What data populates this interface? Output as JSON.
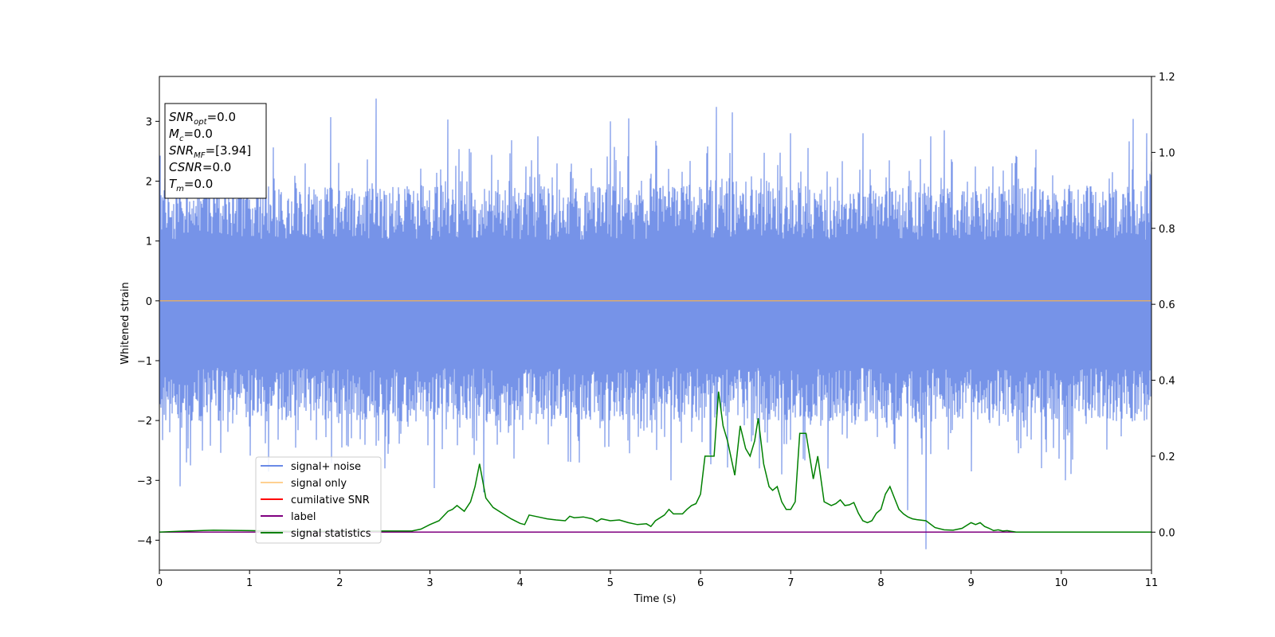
{
  "chart_data": {
    "type": "line",
    "xlabel": "Time (s)",
    "ylabel": "Whitened strain",
    "xlim": [
      0,
      11
    ],
    "ylim": [
      -4.5,
      3.75
    ],
    "ylim_right": [
      -0.1,
      1.2
    ],
    "x_ticks": [
      0,
      1,
      2,
      3,
      4,
      5,
      6,
      7,
      8,
      9,
      10,
      11
    ],
    "y_ticks": [
      -4,
      -3,
      -2,
      -1,
      0,
      1,
      2,
      3
    ],
    "y_tick_labels": [
      "−4",
      "−3",
      "−2",
      "−1",
      "0",
      "1",
      "2",
      "3"
    ],
    "y2_ticks": [
      0.0,
      0.2,
      0.4,
      0.6,
      0.8,
      1.0,
      1.2
    ],
    "y2_tick_labels": [
      "0.0",
      "0.2",
      "0.4",
      "0.6",
      "0.8",
      "1.0",
      "1.2"
    ],
    "grid": false,
    "legend_position": "lower-left",
    "annotation": {
      "lines": [
        {
          "base": "SNR",
          "sub": "opt",
          "rest": "=0.0"
        },
        {
          "base": "M",
          "sub": "c",
          "rest": "=0.0"
        },
        {
          "base": "SNR",
          "sub": "MF",
          "rest": "=[3.94]"
        },
        {
          "base": "CSNR",
          "sub": "",
          "rest": "=0.0"
        },
        {
          "base": "T",
          "sub": "m",
          "rest": "=0.0"
        }
      ]
    },
    "series": [
      {
        "name": "signal+ noise",
        "color": "#6a8ae6",
        "axis": "left",
        "kind": "noise",
        "envelope_typical": [
          -1.3,
          1.2
        ],
        "spikes": [
          {
            "x": 0.23,
            "y": -3.1
          },
          {
            "x": 0.3,
            "y": -2.7
          },
          {
            "x": 1.0,
            "y": -2.1
          },
          {
            "x": 1.9,
            "y": 3.07
          },
          {
            "x": 2.4,
            "y": 3.38
          },
          {
            "x": 2.5,
            "y": -2.8
          },
          {
            "x": 3.05,
            "y": -3.13
          },
          {
            "x": 3.2,
            "y": 3.03
          },
          {
            "x": 3.6,
            "y": -3.2
          },
          {
            "x": 4.2,
            "y": 2.75
          },
          {
            "x": 5.0,
            "y": 3.0
          },
          {
            "x": 5.2,
            "y": 3.05
          },
          {
            "x": 5.67,
            "y": -3.0
          },
          {
            "x": 6.18,
            "y": 3.24
          },
          {
            "x": 6.35,
            "y": 3.15
          },
          {
            "x": 6.65,
            "y": -2.8
          },
          {
            "x": 6.9,
            "y": -2.9
          },
          {
            "x": 7.0,
            "y": 2.8
          },
          {
            "x": 7.8,
            "y": 2.8
          },
          {
            "x": 8.3,
            "y": -3.5
          },
          {
            "x": 8.5,
            "y": -4.15
          },
          {
            "x": 8.55,
            "y": 2.75
          },
          {
            "x": 8.7,
            "y": 2.85
          },
          {
            "x": 9.0,
            "y": -2.85
          },
          {
            "x": 10.05,
            "y": -3.0
          },
          {
            "x": 10.8,
            "y": 3.04
          },
          {
            "x": 10.95,
            "y": 2.8
          }
        ]
      },
      {
        "name": "signal only",
        "color": "#ffb347",
        "axis": "left",
        "x": [
          0,
          11
        ],
        "y": [
          0,
          0
        ]
      },
      {
        "name": "cumilative SNR",
        "color": "#ff0000",
        "axis": "right",
        "x": [
          0,
          11
        ],
        "y": [
          0,
          0
        ]
      },
      {
        "name": "label",
        "color": "#800080",
        "axis": "right",
        "x": [
          0,
          11
        ],
        "y": [
          0,
          0
        ]
      },
      {
        "name": "signal statistics",
        "color": "#008000",
        "axis": "right",
        "x": [
          0,
          0.3,
          0.6,
          1.0,
          1.5,
          2.0,
          2.5,
          2.8,
          2.9,
          3.0,
          3.1,
          3.2,
          3.25,
          3.3,
          3.38,
          3.45,
          3.5,
          3.55,
          3.62,
          3.7,
          3.8,
          3.9,
          4.0,
          4.05,
          4.1,
          4.2,
          4.3,
          4.4,
          4.5,
          4.55,
          4.6,
          4.7,
          4.8,
          4.85,
          4.9,
          5.0,
          5.1,
          5.2,
          5.3,
          5.4,
          5.45,
          5.5,
          5.6,
          5.65,
          5.7,
          5.8,
          5.85,
          5.9,
          5.95,
          6.0,
          6.05,
          6.1,
          6.15,
          6.2,
          6.25,
          6.3,
          6.38,
          6.44,
          6.5,
          6.55,
          6.6,
          6.64,
          6.7,
          6.76,
          6.8,
          6.85,
          6.9,
          6.95,
          7.0,
          7.05,
          7.1,
          7.17,
          7.25,
          7.3,
          7.37,
          7.45,
          7.5,
          7.55,
          7.6,
          7.65,
          7.7,
          7.75,
          7.8,
          7.85,
          7.9,
          7.95,
          8.0,
          8.05,
          8.1,
          8.15,
          8.2,
          8.25,
          8.3,
          8.35,
          8.4,
          8.5,
          8.6,
          8.7,
          8.8,
          8.9,
          9.0,
          9.05,
          9.1,
          9.15,
          9.2,
          9.25,
          9.3,
          9.35,
          9.4,
          9.5,
          9.6,
          9.7,
          10.0,
          10.5,
          11.0
        ],
        "y": [
          0.0,
          0.003,
          0.005,
          0.004,
          0.002,
          0.002,
          0.003,
          0.003,
          0.008,
          0.02,
          0.03,
          0.055,
          0.06,
          0.07,
          0.055,
          0.08,
          0.12,
          0.18,
          0.09,
          0.065,
          0.05,
          0.035,
          0.023,
          0.02,
          0.045,
          0.04,
          0.035,
          0.032,
          0.03,
          0.042,
          0.038,
          0.04,
          0.035,
          0.028,
          0.035,
          0.03,
          0.032,
          0.025,
          0.02,
          0.022,
          0.015,
          0.03,
          0.045,
          0.06,
          0.048,
          0.048,
          0.06,
          0.07,
          0.075,
          0.1,
          0.2,
          0.2,
          0.2,
          0.37,
          0.28,
          0.24,
          0.15,
          0.28,
          0.22,
          0.2,
          0.24,
          0.3,
          0.18,
          0.12,
          0.11,
          0.12,
          0.08,
          0.06,
          0.06,
          0.08,
          0.26,
          0.26,
          0.14,
          0.2,
          0.08,
          0.07,
          0.075,
          0.085,
          0.07,
          0.072,
          0.078,
          0.05,
          0.03,
          0.025,
          0.03,
          0.05,
          0.06,
          0.1,
          0.12,
          0.09,
          0.06,
          0.048,
          0.04,
          0.035,
          0.033,
          0.03,
          0.012,
          0.006,
          0.005,
          0.01,
          0.025,
          0.02,
          0.025,
          0.015,
          0.01,
          0.004,
          0.006,
          0.003,
          0.004,
          0.0,
          0.0,
          0.0,
          0.0,
          0.0,
          0.0
        ]
      }
    ]
  }
}
